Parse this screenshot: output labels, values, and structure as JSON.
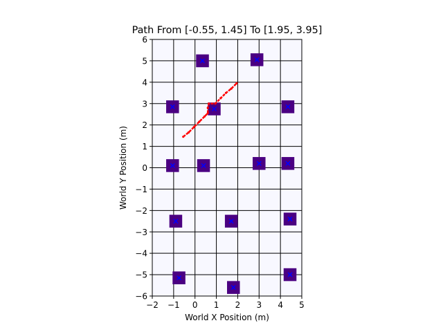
{
  "chart_data": {
    "type": "scatter",
    "title": "Path From [-0.55, 1.45] To [1.95, 3.95]",
    "xlabel": "World X Position (m)",
    "ylabel": "World Y Position (m)",
    "xlim": [
      -2,
      5
    ],
    "ylim": [
      -6,
      6
    ],
    "xticks": [
      -2,
      -1,
      0,
      1,
      2,
      3,
      4,
      5
    ],
    "yticks": [
      -6,
      -5,
      -4,
      -3,
      -2,
      -1,
      0,
      1,
      2,
      3,
      4,
      5,
      6
    ],
    "xtick_labels": [
      "−2",
      "−1",
      "0",
      "1",
      "2",
      "3",
      "4",
      "5"
    ],
    "ytick_labels": [
      "−6",
      "−5",
      "−4",
      "−3",
      "−2",
      "−1",
      "0",
      "1",
      "2",
      "3",
      "4",
      "5",
      "6"
    ],
    "grid": true,
    "grid_spacing": 1,
    "obstacles": {
      "name": "Obstacles",
      "size_m": 0.6,
      "points": [
        {
          "x": 0.35,
          "y": 5.0
        },
        {
          "x": 2.9,
          "y": 5.05
        },
        {
          "x": -1.05,
          "y": 2.85
        },
        {
          "x": 0.9,
          "y": 2.75
        },
        {
          "x": 4.35,
          "y": 2.85
        },
        {
          "x": -1.05,
          "y": 0.1
        },
        {
          "x": 0.4,
          "y": 0.1
        },
        {
          "x": 3.0,
          "y": 0.2
        },
        {
          "x": 4.35,
          "y": 0.2
        },
        {
          "x": -0.9,
          "y": -2.5
        },
        {
          "x": 1.7,
          "y": -2.5
        },
        {
          "x": 4.45,
          "y": -2.4
        },
        {
          "x": -0.75,
          "y": -5.15
        },
        {
          "x": 1.8,
          "y": -5.6
        },
        {
          "x": 4.45,
          "y": -5.0
        }
      ]
    },
    "path": {
      "name": "Path",
      "start": [
        -0.55,
        1.45
      ],
      "goal": [
        1.95,
        3.95
      ],
      "points": [
        {
          "x": -0.55,
          "y": 1.45
        },
        {
          "x": -0.3,
          "y": 1.65
        },
        {
          "x": -0.05,
          "y": 1.9
        },
        {
          "x": 0.2,
          "y": 2.15
        },
        {
          "x": 0.45,
          "y": 2.4
        },
        {
          "x": 0.6,
          "y": 2.55
        },
        {
          "x": 0.6,
          "y": 2.8
        },
        {
          "x": 0.65,
          "y": 3.0
        },
        {
          "x": 0.95,
          "y": 3.0
        },
        {
          "x": 1.2,
          "y": 3.25
        },
        {
          "x": 1.45,
          "y": 3.5
        },
        {
          "x": 1.7,
          "y": 3.7
        },
        {
          "x": 1.95,
          "y": 3.95
        }
      ]
    },
    "colors": {
      "plot_background": "#f8f8ff",
      "grid": "#000000",
      "obstacle_fill": "#4b0082",
      "obstacle_marker": "#0000ff",
      "path": "#ff0000"
    }
  }
}
